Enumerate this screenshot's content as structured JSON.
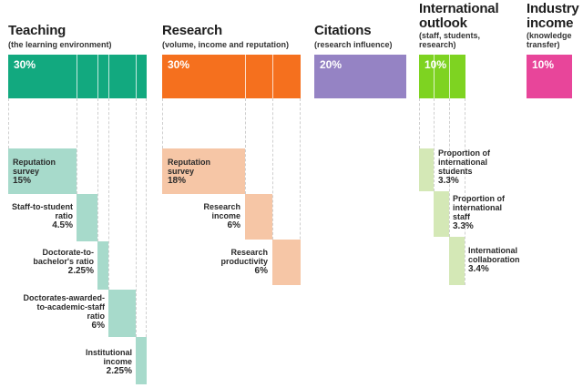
{
  "pillars": {
    "teaching": {
      "title": "Teaching",
      "subtitle": "(the learning environment)",
      "weight": "30%",
      "color": "#12a97f",
      "light_color": "#a7dacb",
      "items": [
        {
          "line1": "Reputation",
          "line2": "survey",
          "line3": "",
          "value": "15%"
        },
        {
          "line1": "Staff-to-student",
          "line2": "ratio",
          "line3": "",
          "value": "4.5%"
        },
        {
          "line1": "Doctorate-to-",
          "line2": "bachelor's ratio",
          "line3": "",
          "value": "2.25%"
        },
        {
          "line1": "Doctorates-awarded-",
          "line2": "to-academic-staff",
          "line3": "ratio",
          "value": "6%"
        },
        {
          "line1": "Institutional",
          "line2": "income",
          "line3": "",
          "value": "2.25%"
        }
      ]
    },
    "research": {
      "title": "Research",
      "subtitle": "(volume, income and reputation)",
      "weight": "30%",
      "color": "#f5701e",
      "light_color": "#f6c6a6",
      "items": [
        {
          "line1": "Reputation",
          "line2": "survey",
          "value": "18%"
        },
        {
          "line1": "Research",
          "line2": "income",
          "value": "6%"
        },
        {
          "line1": "Research",
          "line2": "productivity",
          "value": "6%"
        }
      ]
    },
    "citations": {
      "title": "Citations",
      "subtitle": "(research influence)",
      "weight": "20%",
      "color": "#9583c4"
    },
    "international": {
      "title1": "International",
      "title2": "outlook",
      "sub1": "(staff, students,",
      "sub2": "research)",
      "weight": "10%",
      "color": "#7ed321",
      "light_color": "#d4e8b6",
      "items": [
        {
          "line1": "Proportion of",
          "line2": "international",
          "line3": "students",
          "value": "3.3%"
        },
        {
          "line1": "Proportion of",
          "line2": "international",
          "line3": "staff",
          "value": "3.3%"
        },
        {
          "line1": "International",
          "line2": "collaboration",
          "line3": "",
          "value": "3.4%"
        }
      ]
    },
    "industry": {
      "title1": "Industry",
      "title2": "income",
      "sub1": "(knowledge",
      "sub2": "transfer)",
      "weight": "10%",
      "color": "#e8459a"
    }
  }
}
